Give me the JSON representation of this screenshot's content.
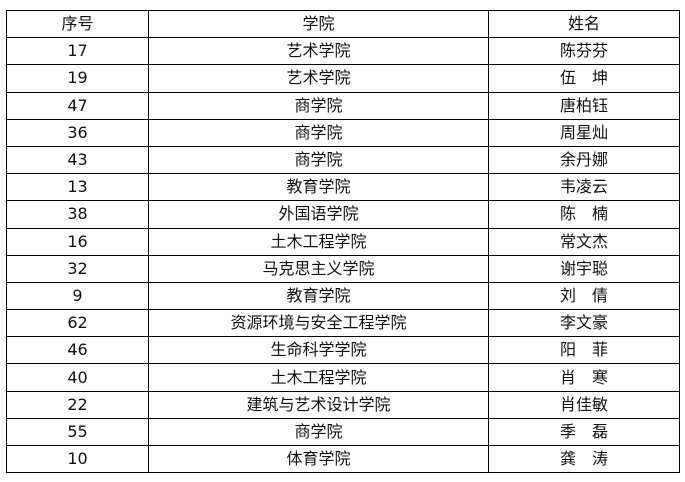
{
  "headers": [
    "序号",
    "学院",
    "姓名"
  ],
  "rows": [
    [
      "17",
      "艺术学院",
      "陈芬芬"
    ],
    [
      "19",
      "艺术学院",
      "伍　坤"
    ],
    [
      "47",
      "商学院",
      "唐柏钰"
    ],
    [
      "36",
      "商学院",
      "周星灿"
    ],
    [
      "43",
      "商学院",
      "余丹娜"
    ],
    [
      "13",
      "教育学院",
      "韦凌云"
    ],
    [
      "38",
      "外国语学院",
      "陈　楠"
    ],
    [
      "16",
      "土木工程学院",
      "常文杰"
    ],
    [
      "32",
      "马克思主义学院",
      "谢宇聪"
    ],
    [
      "9",
      "教育学院",
      "刘　倩"
    ],
    [
      "62",
      "资源环境与安全工程学院",
      "李文豪"
    ],
    [
      "46",
      "生命科学学院",
      "阳　菲"
    ],
    [
      "40",
      "土木工程学院",
      "肖　寒"
    ],
    [
      "22",
      "建筑与艺术设计学院",
      "肖佳敏"
    ],
    [
      "55",
      "商学院",
      "季　磊"
    ],
    [
      "10",
      "体育学院",
      "龚　涛"
    ]
  ]
}
